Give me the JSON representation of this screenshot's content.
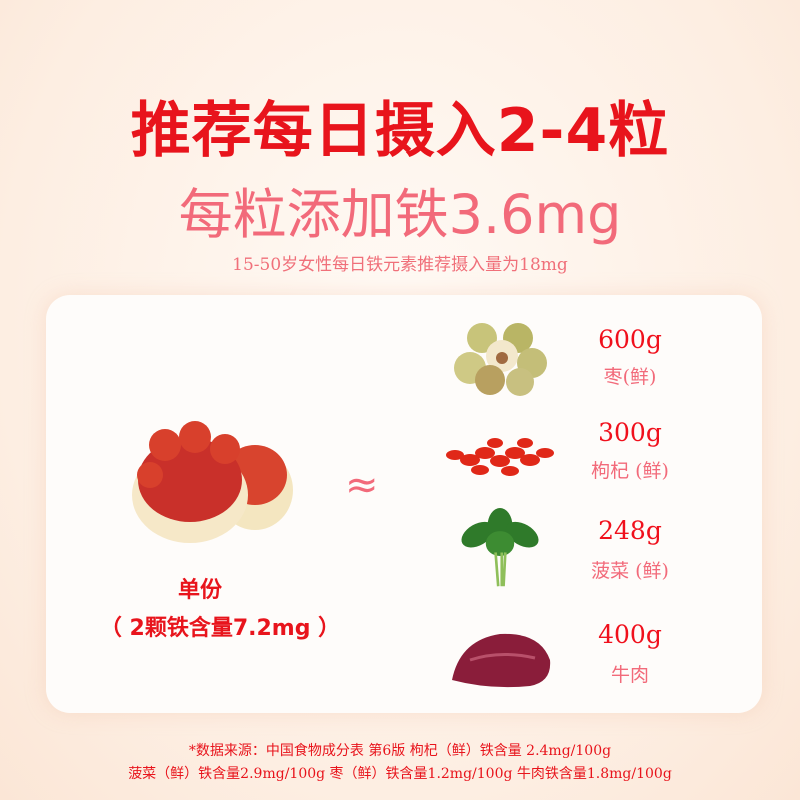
{
  "headline": "推荐每日摄入2-4粒",
  "subheadline": "每粒添加铁3.6mg",
  "note": "15-50岁女性每日铁元素推荐摄入量为18mg",
  "serving": {
    "label": "单份",
    "detail": "（ 2颗铁含量7.2mg ）"
  },
  "approx_symbol": "≈",
  "foods": [
    {
      "amount": "600g",
      "name": "枣(鲜)",
      "icon": "jujube-image"
    },
    {
      "amount": "300g",
      "name": "枸杞 (鲜)",
      "icon": "goji-image"
    },
    {
      "amount": "248g",
      "name": "菠菜 (鲜)",
      "icon": "spinach-image"
    },
    {
      "amount": "400g",
      "name": "牛肉",
      "icon": "beef-image"
    }
  ],
  "footnote": {
    "line1": "*数据来源：中国食物成分表 第6版 枸杞（鲜）铁含量 2.4mg/100g",
    "line2": "菠菜（鲜）铁含量2.9mg/100g  枣（鲜）铁含量1.2mg/100g  牛肉铁含量1.8mg/100g"
  },
  "colors": {
    "primary": "#e8141c",
    "secondary": "#f26a7a"
  }
}
